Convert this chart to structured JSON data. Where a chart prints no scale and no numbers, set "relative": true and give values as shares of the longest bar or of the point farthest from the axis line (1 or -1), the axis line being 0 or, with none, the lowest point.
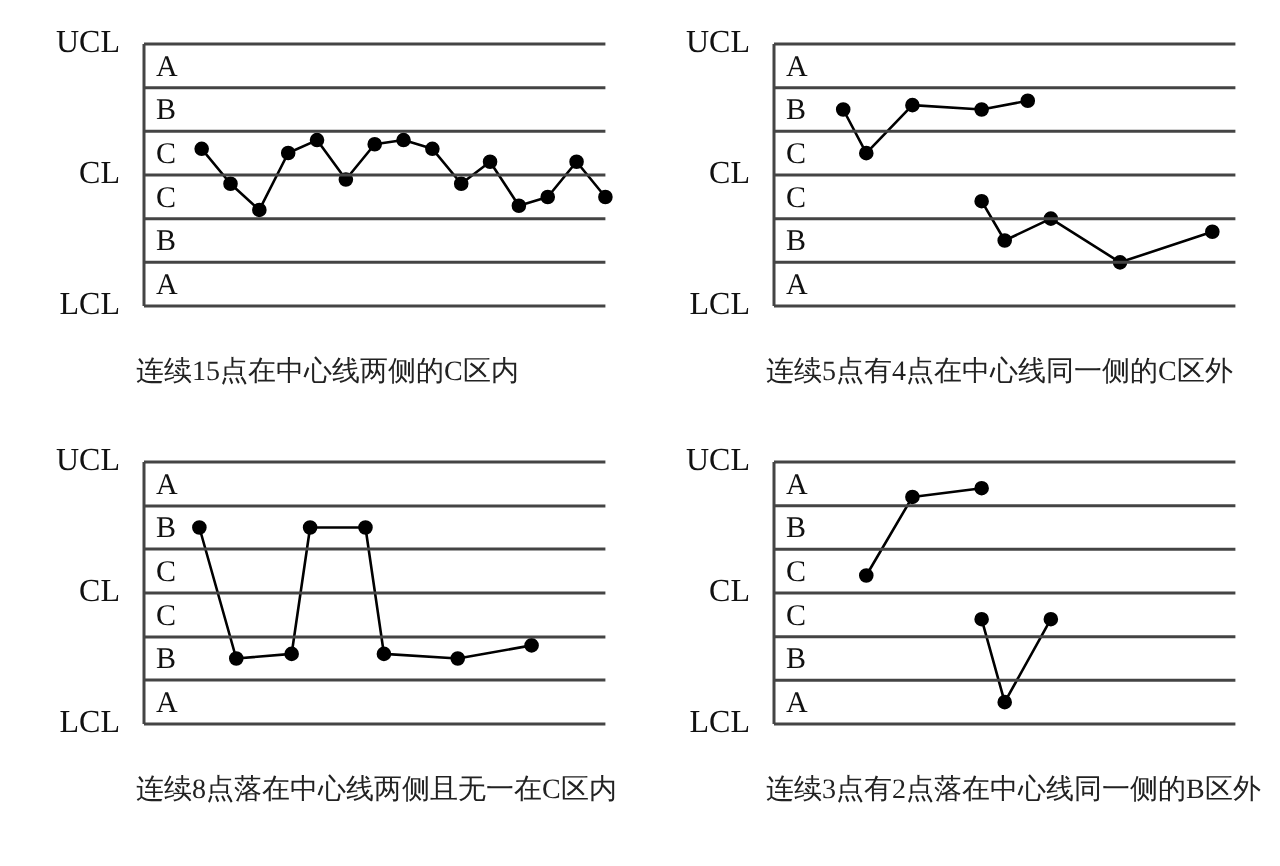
{
  "chart_data": [
    {
      "type": "line",
      "relative": true,
      "categories": [
        null,
        null,
        null,
        null,
        null,
        null,
        null,
        null,
        null,
        null,
        null,
        null,
        null,
        null,
        null,
        null,
        null
      ],
      "legend": false,
      "marker": "circle",
      "line_style": "solid",
      "ref_lines": [
        {
          "axis": "y",
          "value": 3.75,
          "label": "UCL"
        },
        {
          "axis": "y",
          "value": 2.5
        },
        {
          "axis": "y",
          "value": 1.25
        },
        {
          "axis": "y",
          "value": 0,
          "label": "CL"
        },
        {
          "axis": "y",
          "value": -1.25
        },
        {
          "axis": "y",
          "value": -2.5
        },
        {
          "axis": "y",
          "value": -3.75,
          "label": "LCL"
        }
      ],
      "series": [
        {
          "color": "#000000",
          "values": [
            null,
            null,
            0.75,
            -0.25,
            -1,
            0.63,
            1,
            -0.13,
            0.88,
            1,
            0.75,
            -0.25,
            0.38,
            -0.88,
            -0.63,
            0.38,
            -0.63
          ]
        }
      ],
      "annotations": [
        "A",
        "B",
        "C",
        "C",
        "B",
        "A",
        "连续15点在中心线两侧的C区内"
      ]
    },
    {
      "type": "line",
      "relative": true,
      "categories": [
        null,
        null,
        null,
        null,
        null,
        null,
        null,
        null,
        null,
        null,
        null,
        null,
        null,
        null,
        null,
        null,
        null,
        null,
        null,
        null,
        null
      ],
      "legend": false,
      "marker": "circle",
      "line_style": "solid",
      "ref_lines": [
        {
          "axis": "y",
          "value": 1.5,
          "label": "UCL"
        },
        {
          "axis": "y",
          "value": 1
        },
        {
          "axis": "y",
          "value": 0.5
        },
        {
          "axis": "y",
          "value": 0,
          "label": "CL"
        },
        {
          "axis": "y",
          "value": -0.5
        },
        {
          "axis": "y",
          "value": -1
        },
        {
          "axis": "y",
          "value": -1.5,
          "label": "LCL"
        }
      ],
      "series": [
        {
          "color": "#000000",
          "values": [
            null,
            null,
            null,
            0.75,
            0.25,
            null,
            0.8,
            null,
            null,
            0.75,
            null,
            0.85,
            null,
            null,
            null,
            null,
            null,
            null,
            null,
            null,
            null
          ]
        },
        {
          "color": "#000000",
          "values": [
            null,
            null,
            null,
            null,
            null,
            null,
            null,
            null,
            null,
            -0.3,
            -0.75,
            null,
            -0.5,
            null,
            null,
            -1,
            null,
            null,
            null,
            -0.65,
            null
          ]
        }
      ],
      "annotations": [
        "A",
        "B",
        "C",
        "C",
        "B",
        "A",
        "连续5点有4点在中心线同一侧的C区外"
      ]
    },
    {
      "type": "line",
      "relative": true,
      "categories": [
        null,
        null,
        null,
        null,
        null,
        null,
        null,
        null,
        null,
        null,
        null,
        null,
        null,
        null,
        null,
        null,
        null,
        null,
        null,
        null,
        null,
        null,
        null,
        null,
        null,
        null
      ],
      "legend": false,
      "marker": "circle",
      "line_style": "solid",
      "ref_lines": [
        {
          "axis": "y",
          "value": 2,
          "label": "UCL"
        },
        {
          "axis": "y",
          "value": 1.33
        },
        {
          "axis": "y",
          "value": 0.67
        },
        {
          "axis": "y",
          "value": 0,
          "label": "CL"
        },
        {
          "axis": "y",
          "value": -0.67
        },
        {
          "axis": "y",
          "value": -1.33
        },
        {
          "axis": "y",
          "value": -2,
          "label": "LCL"
        }
      ],
      "series": [
        {
          "color": "#000000",
          "values": [
            null,
            null,
            null,
            1,
            null,
            -1,
            null,
            null,
            -0.93,
            1,
            null,
            null,
            1,
            -0.93,
            null,
            null,
            null,
            -1,
            null,
            null,
            null,
            -0.8,
            null,
            null,
            null,
            null
          ]
        }
      ],
      "annotations": [
        "A",
        "B",
        "C",
        "C",
        "B",
        "A",
        "连续8点落在中心线两侧且无一在C区内"
      ]
    },
    {
      "type": "line",
      "relative": true,
      "categories": [
        null,
        null,
        null,
        null,
        null,
        null,
        null,
        null,
        null,
        null,
        null,
        null,
        null,
        null,
        null,
        null,
        null,
        null,
        null,
        null,
        null
      ],
      "legend": false,
      "marker": "circle",
      "line_style": "solid",
      "ref_lines": [
        {
          "axis": "y",
          "value": 1.2,
          "label": "UCL"
        },
        {
          "axis": "y",
          "value": 0.8
        },
        {
          "axis": "y",
          "value": 0.4
        },
        {
          "axis": "y",
          "value": 0,
          "label": "CL"
        },
        {
          "axis": "y",
          "value": -0.4
        },
        {
          "axis": "y",
          "value": -0.8
        },
        {
          "axis": "y",
          "value": -1.2,
          "label": "LCL"
        }
      ],
      "series": [
        {
          "color": "#000000",
          "values": [
            null,
            null,
            null,
            null,
            0.16,
            null,
            0.88,
            null,
            null,
            0.96,
            null,
            null,
            null,
            null,
            null,
            null,
            null,
            null,
            null,
            null,
            null
          ]
        },
        {
          "color": "#000000",
          "values": [
            null,
            null,
            null,
            null,
            null,
            null,
            null,
            null,
            null,
            -0.24,
            -1,
            null,
            -0.24,
            null,
            null,
            null,
            null,
            null,
            null,
            null,
            null
          ]
        }
      ],
      "annotations": [
        "A",
        "B",
        "C",
        "C",
        "B",
        "A",
        "连续3点有2点落在中心线同一侧的B区外"
      ]
    }
  ]
}
